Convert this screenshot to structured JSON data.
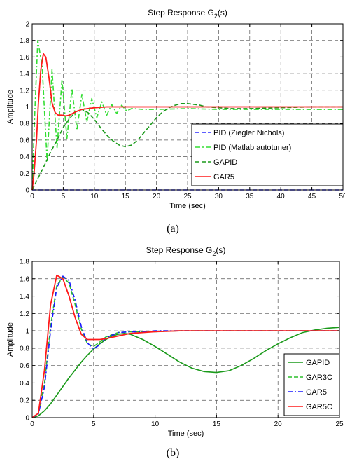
{
  "panel_labels": [
    "(a)",
    "(b)"
  ],
  "chart_data": [
    {
      "type": "line",
      "title_prefix": "Step Response G",
      "title_sub": "2",
      "title_suffix": "(s)",
      "xlabel": "Time (sec)",
      "ylabel": "Amplitude",
      "xlim": [
        0,
        50
      ],
      "ylim": [
        0,
        2
      ],
      "xticks": [
        0,
        5,
        10,
        15,
        20,
        25,
        30,
        35,
        40,
        45,
        50
      ],
      "yticks": [
        0,
        0.2,
        0.4,
        0.6,
        0.8,
        1,
        1.2,
        1.4,
        1.6,
        1.8,
        2
      ],
      "grid": true,
      "legend_position": "right",
      "series": [
        {
          "name": "PID (Ziegler Nichols)",
          "color": "#2a2aff",
          "dash": "dashed",
          "x": [
            0,
            10,
            20,
            30,
            40,
            50
          ],
          "y": [
            0,
            0,
            0,
            0,
            0,
            0
          ]
        },
        {
          "name": "PID (Matlab autotuner)",
          "color": "#33dd33",
          "dash": "dashdot",
          "x": [
            0,
            0.4,
            0.9,
            1.6,
            2.4,
            3.2,
            4.0,
            4.8,
            5.6,
            6.4,
            7.2,
            8.0,
            8.8,
            9.6,
            10.4,
            11.2,
            12.0,
            12.8,
            13.6,
            14.4,
            15.2,
            16,
            18,
            20,
            25,
            30,
            40,
            50
          ],
          "y": [
            0,
            0.9,
            1.8,
            1.5,
            0.35,
            1.45,
            0.5,
            1.33,
            0.62,
            1.22,
            0.72,
            1.15,
            0.82,
            1.1,
            0.87,
            1.06,
            0.9,
            1.03,
            0.92,
            1.02,
            0.95,
            0.98,
            0.97,
            0.97,
            0.98,
            0.97,
            0.97,
            0.97
          ]
        },
        {
          "name": "GAPID",
          "color": "#1a9a1a",
          "dash": "dashed",
          "x": [
            0,
            1,
            2,
            3,
            4,
            5,
            6,
            7,
            8,
            9,
            10,
            11,
            12,
            13,
            14,
            15,
            16,
            17,
            18,
            19,
            20,
            21,
            22,
            23,
            24,
            25,
            26,
            27,
            28,
            30,
            32,
            35,
            40,
            45,
            50
          ],
          "y": [
            0,
            0.15,
            0.3,
            0.46,
            0.6,
            0.75,
            0.86,
            0.94,
            0.97,
            0.93,
            0.85,
            0.75,
            0.66,
            0.59,
            0.54,
            0.52,
            0.54,
            0.6,
            0.69,
            0.78,
            0.87,
            0.94,
            0.99,
            1.02,
            1.04,
            1.04,
            1.03,
            1.02,
            1.0,
            0.99,
            0.98,
            0.98,
            0.99,
            1.0,
            1.0
          ]
        },
        {
          "name": "GAR5",
          "color": "#ff1a1a",
          "dash": "solid",
          "x": [
            0,
            0.3,
            0.7,
            1.0,
            1.4,
            1.8,
            2.2,
            2.7,
            3.2,
            3.7,
            4.2,
            4.8,
            5.4,
            6.0,
            7.0,
            8.0,
            9.0,
            10,
            12,
            15,
            20,
            30,
            40,
            50
          ],
          "y": [
            0,
            0.2,
            0.6,
            1.05,
            1.45,
            1.64,
            1.6,
            1.35,
            1.05,
            0.93,
            0.9,
            0.9,
            0.89,
            0.9,
            0.94,
            0.97,
            0.98,
            0.99,
            1.0,
            1.0,
            1.0,
            1.0,
            1.0,
            1.0
          ]
        }
      ]
    },
    {
      "type": "line",
      "title_prefix": "Step Response G",
      "title_sub": "2",
      "title_suffix": "(s)",
      "xlabel": "Time (sec)",
      "ylabel": "Amplitude",
      "xlim": [
        0,
        25
      ],
      "ylim": [
        0,
        1.8
      ],
      "xticks": [
        0,
        5,
        10,
        15,
        20,
        25
      ],
      "yticks": [
        0,
        0.2,
        0.4,
        0.6,
        0.8,
        1,
        1.2,
        1.4,
        1.6,
        1.8
      ],
      "grid": true,
      "legend_position": "bottom-right",
      "series": [
        {
          "name": "GAPID",
          "color": "#1a9a1a",
          "dash": "solid",
          "x": [
            0,
            0.5,
            1,
            1.5,
            2,
            2.5,
            3,
            3.5,
            4,
            4.5,
            5,
            5.5,
            6,
            6.5,
            7,
            7.5,
            8,
            9,
            10,
            11,
            12,
            13,
            14,
            15,
            16,
            17,
            18,
            19,
            20,
            21,
            22,
            23,
            24,
            25
          ],
          "y": [
            0,
            0.02,
            0.08,
            0.16,
            0.26,
            0.36,
            0.46,
            0.55,
            0.64,
            0.72,
            0.79,
            0.85,
            0.9,
            0.94,
            0.96,
            0.97,
            0.96,
            0.9,
            0.82,
            0.73,
            0.64,
            0.57,
            0.53,
            0.52,
            0.54,
            0.6,
            0.68,
            0.77,
            0.85,
            0.92,
            0.98,
            1.01,
            1.03,
            1.04
          ]
        },
        {
          "name": "GAR3C",
          "color": "#2bbf2b",
          "dash": "dashed",
          "x": [
            0,
            0.5,
            1,
            1.5,
            2,
            2.5,
            3,
            3.5,
            4,
            4.5,
            5,
            5.5,
            6,
            7,
            8,
            9,
            10,
            12,
            15,
            20,
            25
          ],
          "y": [
            0,
            0.05,
            0.4,
            1.05,
            1.52,
            1.62,
            1.55,
            1.3,
            1.02,
            0.85,
            0.82,
            0.87,
            0.93,
            0.98,
            0.99,
            0.99,
            0.99,
            1.0,
            1.0,
            1.0,
            1.0
          ]
        },
        {
          "name": "GAR5",
          "color": "#1a1aff",
          "dash": "dashdot",
          "x": [
            0,
            0.5,
            1,
            1.5,
            2,
            2.5,
            3,
            3.5,
            4,
            4.5,
            5,
            5.5,
            6,
            7,
            8,
            9,
            10,
            12,
            15,
            20,
            25
          ],
          "y": [
            0,
            0.04,
            0.35,
            1.0,
            1.5,
            1.63,
            1.58,
            1.35,
            1.05,
            0.86,
            0.79,
            0.84,
            0.92,
            0.98,
            0.99,
            0.99,
            1.0,
            1.0,
            1.0,
            1.0,
            1.0
          ]
        },
        {
          "name": "GAR5C",
          "color": "#ff1a1a",
          "dash": "solid",
          "x": [
            0,
            0.5,
            1,
            1.5,
            2,
            2.5,
            3,
            3.5,
            4,
            4.5,
            5,
            5.5,
            6,
            7,
            8,
            9,
            10,
            12,
            15,
            20,
            25
          ],
          "y": [
            0,
            0.05,
            0.55,
            1.3,
            1.64,
            1.6,
            1.4,
            1.15,
            0.96,
            0.9,
            0.9,
            0.9,
            0.91,
            0.94,
            0.97,
            0.98,
            0.99,
            1.0,
            1.0,
            1.0,
            1.0
          ]
        }
      ]
    }
  ]
}
